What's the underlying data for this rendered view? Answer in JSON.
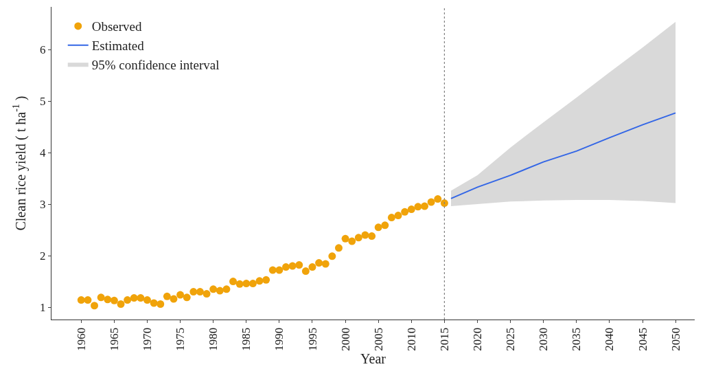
{
  "chart_data": {
    "type": "scatter",
    "xlabel": "Year",
    "ylabel": "Clean rice yield ( t ha$^{-1}$ )",
    "xlim": [
      1955.5,
      2052.9
    ],
    "ylim": [
      0.76,
      6.83
    ],
    "xticks": [
      1960,
      1965,
      1970,
      1975,
      1980,
      1985,
      1990,
      1995,
      2000,
      2005,
      2010,
      2015,
      2020,
      2025,
      2030,
      2035,
      2040,
      2045,
      2050
    ],
    "yticks": [
      1,
      2,
      3,
      4,
      5,
      6
    ],
    "legend": "top left",
    "ref_lines": [
      {
        "axis": "x",
        "value": 2015,
        "color": "#808080",
        "line_style": "dotted"
      }
    ],
    "series": [
      {
        "name": "Observed",
        "marker": "circle",
        "color": "#f0a30a",
        "x": [
          1960,
          1961,
          1962,
          1963,
          1964,
          1965,
          1966,
          1967,
          1968,
          1969,
          1970,
          1971,
          1972,
          1973,
          1974,
          1975,
          1976,
          1977,
          1978,
          1979,
          1980,
          1981,
          1982,
          1983,
          1984,
          1985,
          1986,
          1987,
          1988,
          1989,
          1990,
          1991,
          1992,
          1993,
          1994,
          1995,
          1996,
          1997,
          1998,
          1999,
          2000,
          2001,
          2002,
          2003,
          2004,
          2005,
          2006,
          2007,
          2008,
          2009,
          2010,
          2011,
          2012,
          2013,
          2014,
          2015
        ],
        "values": [
          1.14,
          1.14,
          1.03,
          1.19,
          1.15,
          1.13,
          1.06,
          1.14,
          1.18,
          1.18,
          1.14,
          1.08,
          1.06,
          1.21,
          1.16,
          1.24,
          1.19,
          1.3,
          1.3,
          1.26,
          1.35,
          1.32,
          1.35,
          1.5,
          1.45,
          1.46,
          1.46,
          1.51,
          1.53,
          1.72,
          1.72,
          1.78,
          1.8,
          1.82,
          1.7,
          1.78,
          1.86,
          1.84,
          1.99,
          2.15,
          2.33,
          2.28,
          2.35,
          2.4,
          2.38,
          2.55,
          2.59,
          2.74,
          2.78,
          2.85,
          2.9,
          2.95,
          2.96,
          3.04,
          3.1,
          3.02
        ]
      },
      {
        "name": "95% confidence interval",
        "type": "area",
        "color": "#d9d9d9",
        "x": [
          2016,
          2020,
          2025,
          2030,
          2035,
          2040,
          2045,
          2050
        ],
        "values": [
          null,
          null,
          null,
          null,
          null,
          null,
          null,
          null
        ],
        "lower": [
          2.96,
          3.0,
          3.05,
          3.07,
          3.08,
          3.08,
          3.06,
          3.02
        ],
        "upper": [
          3.26,
          3.56,
          4.1,
          4.59,
          5.07,
          5.56,
          6.04,
          6.54
        ]
      },
      {
        "name": "Estimated",
        "type": "line",
        "marker": "none",
        "line_style": "solid",
        "color": "#3366e6",
        "x": [
          2016,
          2020,
          2025,
          2030,
          2035,
          2040,
          2045,
          2050
        ],
        "values": [
          3.11,
          3.33,
          3.56,
          3.82,
          4.03,
          4.29,
          4.54,
          4.77
        ]
      }
    ]
  }
}
